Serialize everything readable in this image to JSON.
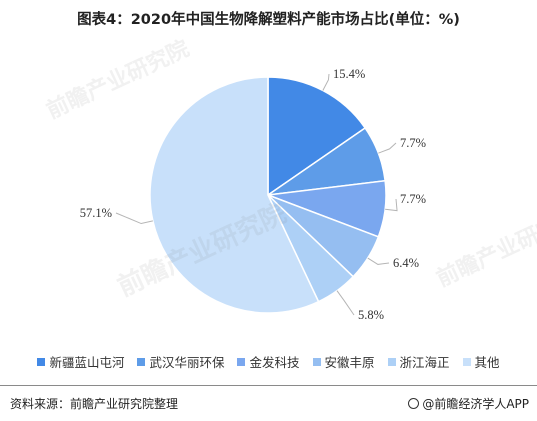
{
  "title": "图表4：2020年中国生物降解塑料产能市场占比(单位：%)",
  "chart_data": {
    "type": "pie",
    "title": "图表4：2020年中国生物降解塑料产能市场占比(单位：%)",
    "categories": [
      "新疆蓝山屯河",
      "武汉华丽环保",
      "金发科技",
      "安徽丰原",
      "浙江海正",
      "其他"
    ],
    "values": [
      15.4,
      7.7,
      7.7,
      6.4,
      5.8,
      57.1
    ],
    "labels": [
      "15.4%",
      "7.7%",
      "7.7%",
      "6.4%",
      "5.8%",
      "57.1%"
    ],
    "colors": [
      "#4289e6",
      "#5e9ce8",
      "#7aa7ef",
      "#95bef1",
      "#add0f6",
      "#c8e0fa"
    ],
    "legend_position": "bottom"
  },
  "source": "资料来源：前瞻产业研究院整理",
  "brand": "@前瞻经济学人APP",
  "watermark": "前瞻产业研究院"
}
